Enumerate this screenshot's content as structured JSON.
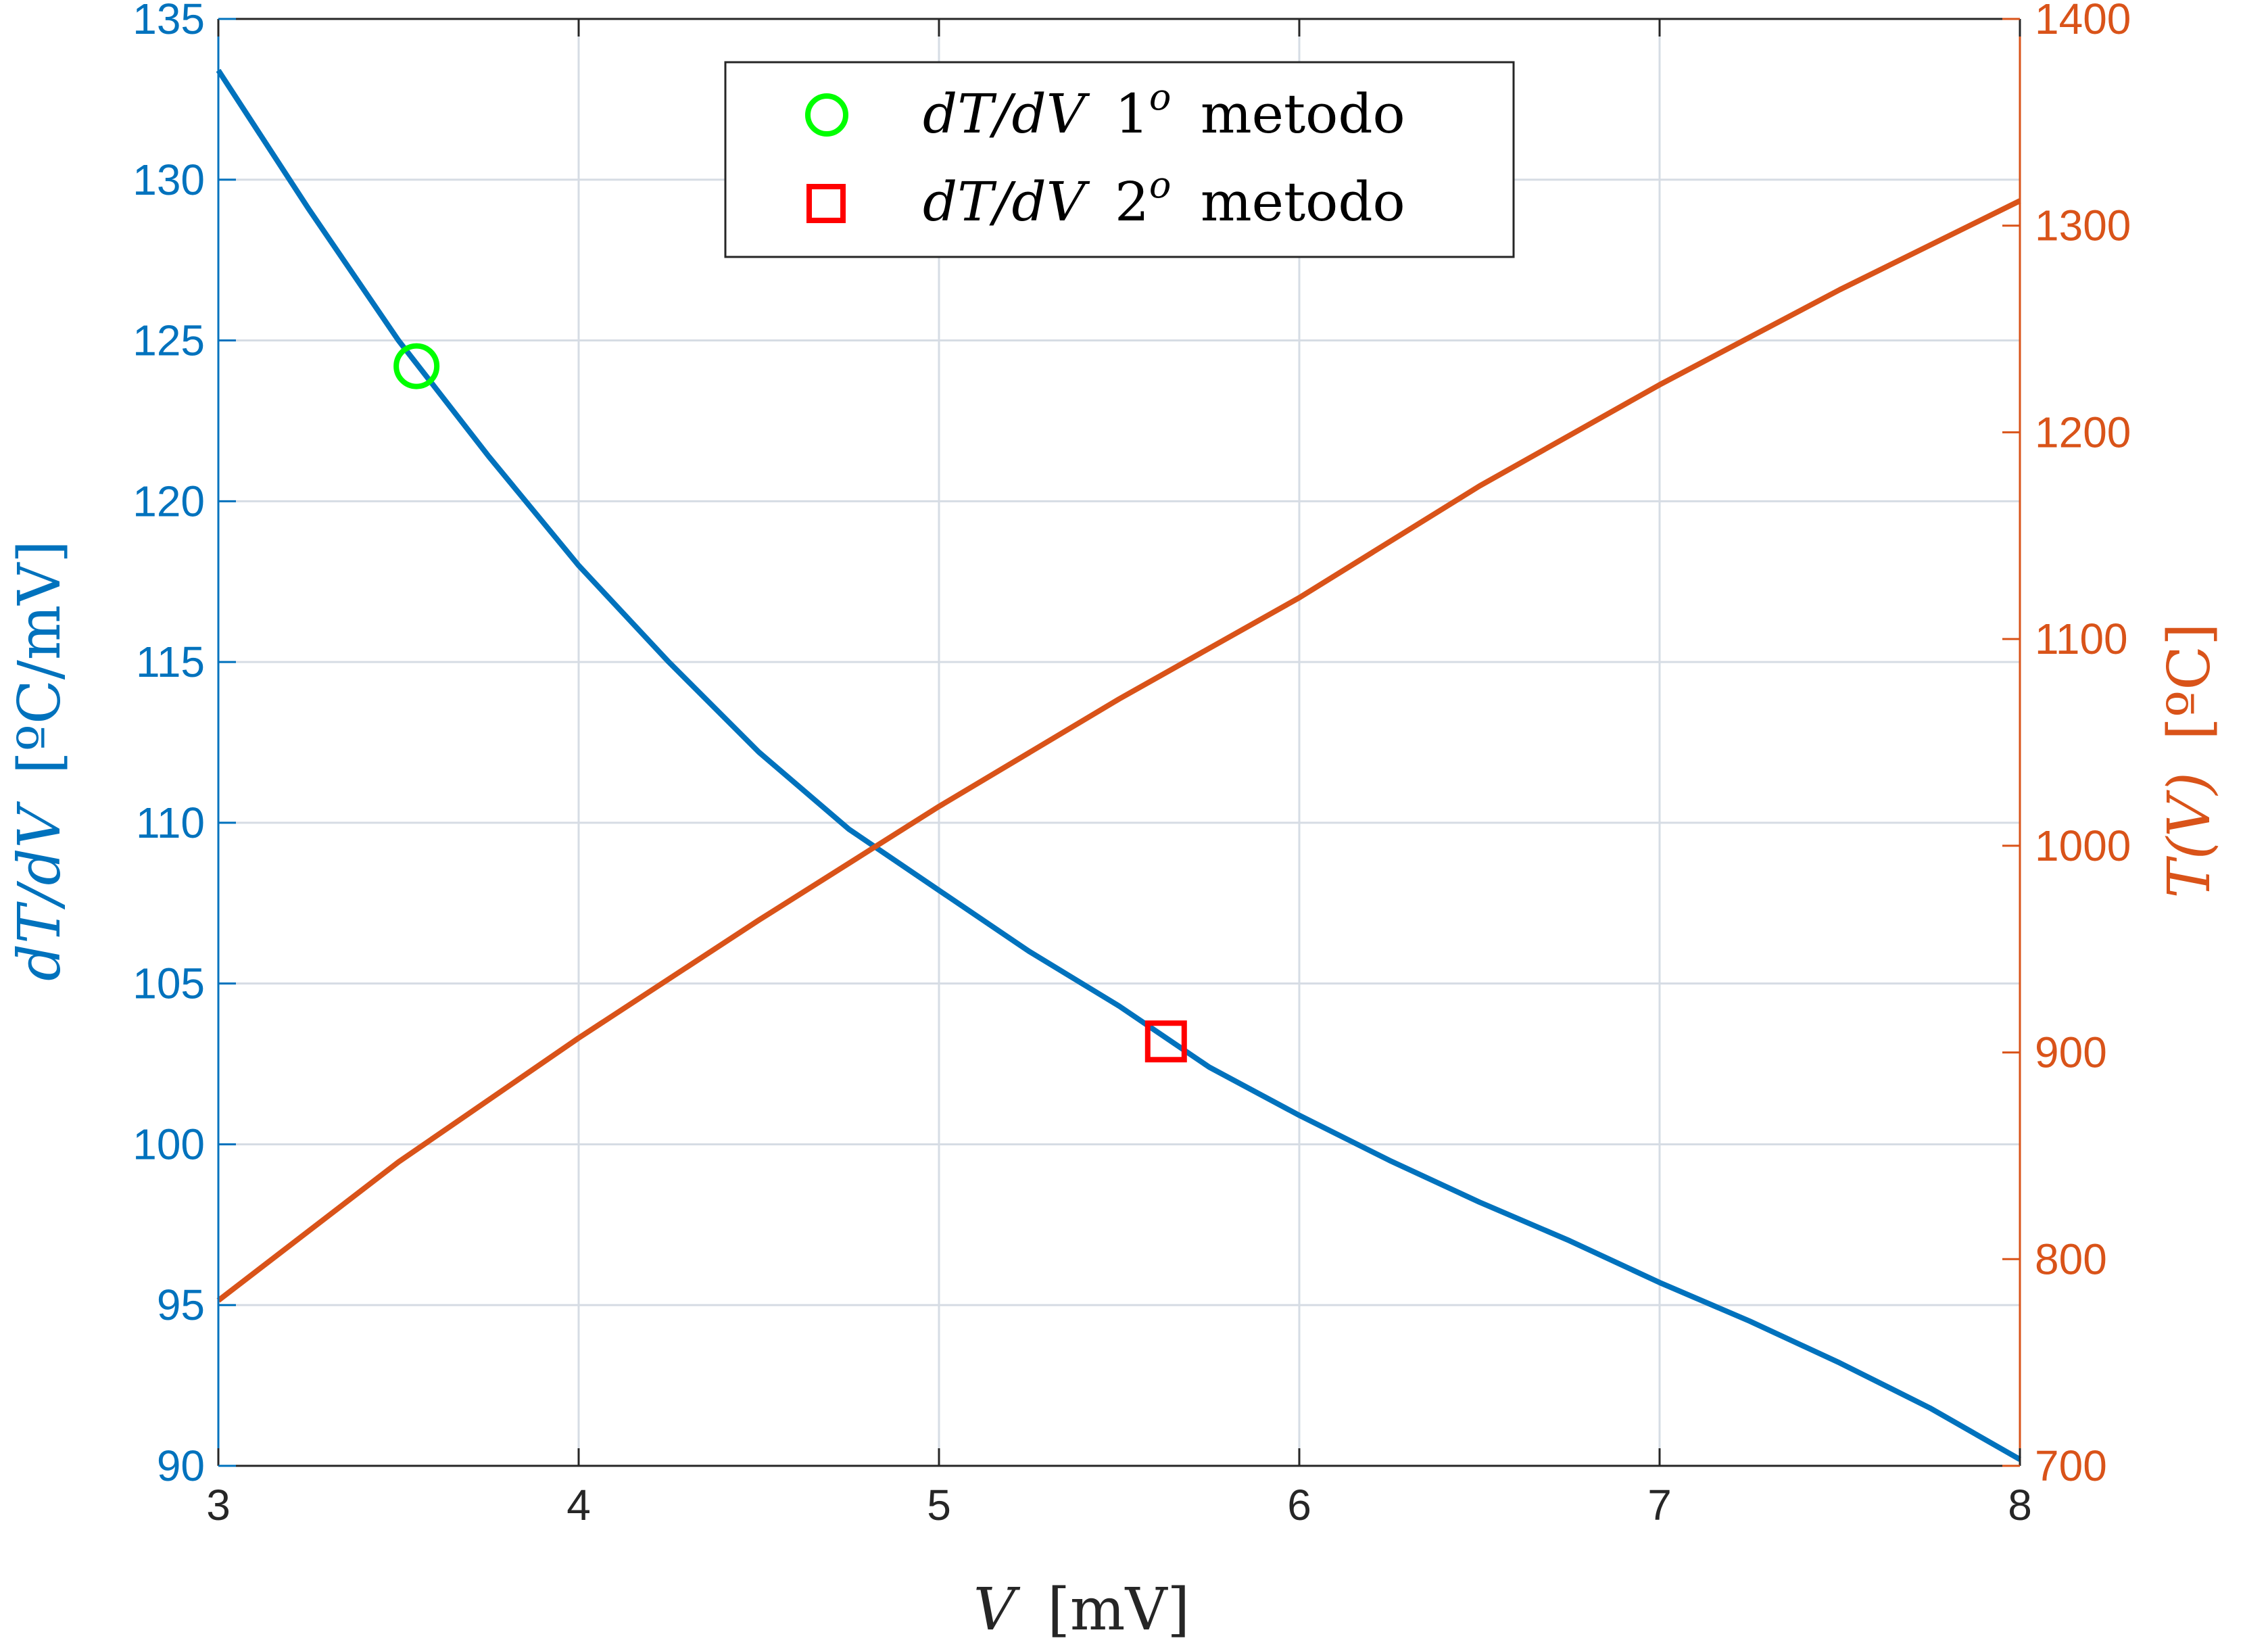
{
  "chart_data": {
    "type": "line",
    "x_axis": {
      "label_var": "V",
      "label_unit": "[mV]",
      "range": [
        3,
        8
      ],
      "ticks": [
        "3",
        "4",
        "5",
        "6",
        "7",
        "8"
      ]
    },
    "y_left": {
      "label_var": "dT/dV",
      "label_unit": "[ºC/mV]",
      "range": [
        90,
        135
      ],
      "ticks": [
        "90",
        "95",
        "100",
        "105",
        "110",
        "115",
        "120",
        "125",
        "130",
        "135"
      ],
      "color": "#0072BD"
    },
    "y_right": {
      "label_var": "T(V)",
      "label_unit": "[ºC]",
      "range": [
        700,
        1400
      ],
      "ticks": [
        "700",
        "800",
        "900",
        "1000",
        "1100",
        "1200",
        "1300",
        "1400"
      ],
      "color": "#D95319"
    },
    "grid": true,
    "legend_position": "top-center",
    "series": [
      {
        "axis": "left",
        "color": "#0072BD",
        "x": [
          3.0,
          3.25,
          3.5,
          3.75,
          4.0,
          4.25,
          4.5,
          4.75,
          5.0,
          5.25,
          5.5,
          5.75,
          6.0,
          6.25,
          6.5,
          6.75,
          7.0,
          7.25,
          7.5,
          7.75,
          8.0
        ],
        "y": [
          133.4,
          129.1,
          125.0,
          121.4,
          118.0,
          115.0,
          112.2,
          109.8,
          107.9,
          106.0,
          104.3,
          102.4,
          100.9,
          99.5,
          98.2,
          97.0,
          95.7,
          94.5,
          93.2,
          91.8,
          90.2
        ]
      },
      {
        "axis": "right",
        "color": "#D95319",
        "x": [
          3.0,
          3.5,
          4.0,
          4.5,
          5.0,
          5.5,
          6.0,
          6.5,
          7.0,
          7.5,
          8.0
        ],
        "y": [
          780,
          847,
          907,
          964,
          1019,
          1071,
          1120,
          1174,
          1223,
          1269,
          1312
        ]
      },
      {
        "name_var": "dT/dV",
        "name_sup": "o",
        "name_num": "1",
        "name_text": "metodo",
        "axis": "left",
        "marker": "circle",
        "color": "#00FF00",
        "x": [
          3.55
        ],
        "y": [
          124.2
        ]
      },
      {
        "name_var": "dT/dV",
        "name_sup": "o",
        "name_num": "2",
        "name_text": "metodo",
        "axis": "left",
        "marker": "square",
        "color": "#FF0000",
        "x": [
          5.63
        ],
        "y": [
          103.2
        ]
      }
    ]
  }
}
